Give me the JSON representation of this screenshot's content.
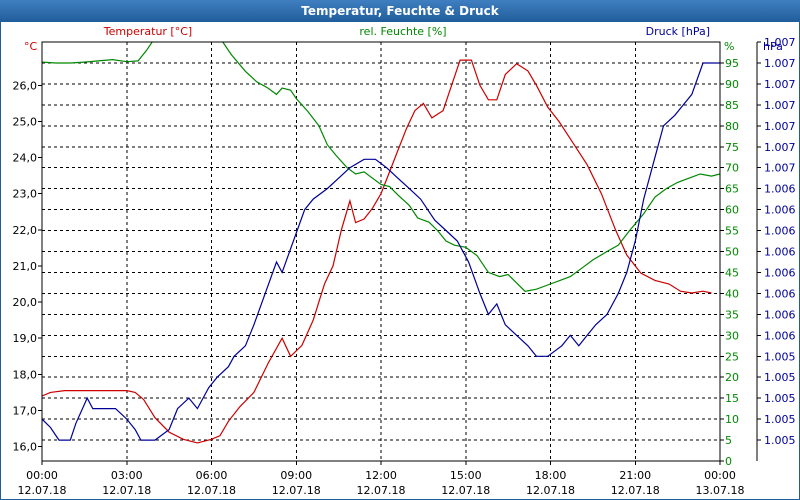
{
  "title": "Temperatur, Feuchte & Druck",
  "chart_data": {
    "type": "line",
    "title": "Temperatur, Feuchte & Druck",
    "colors": {
      "temperature": "#cc0000",
      "humidity": "#008800",
      "pressure": "#000099"
    },
    "x_ticks": [
      {
        "time": "00:00",
        "date": "12.07.18"
      },
      {
        "time": "03:00",
        "date": "12.07.18"
      },
      {
        "time": "06:00",
        "date": "12.07.18"
      },
      {
        "time": "09:00",
        "date": "12.07.18"
      },
      {
        "time": "12:00",
        "date": "12.07.18"
      },
      {
        "time": "15:00",
        "date": "12.07.18"
      },
      {
        "time": "18:00",
        "date": "12.07.18"
      },
      {
        "time": "21:00",
        "date": "12.07.18"
      },
      {
        "time": "00:00",
        "date": "13.07.18"
      }
    ],
    "x_range_hours": [
      0,
      24
    ],
    "axes": {
      "left": {
        "label": "Temperatur [°C]",
        "unit": "°C",
        "ylim": [
          15.6,
          27.2
        ],
        "ticks": [
          "16,0",
          "17,0",
          "18,0",
          "19,0",
          "20,0",
          "21,0",
          "22,0",
          "23,0",
          "24,0",
          "25,0",
          "26,0"
        ],
        "tick_values": [
          16,
          17,
          18,
          19,
          20,
          21,
          22,
          23,
          24,
          25,
          26
        ]
      },
      "right1": {
        "label": "rel. Feuchte [%]",
        "unit": "%",
        "ylim": [
          0,
          100
        ],
        "ticks": [
          "0",
          "5",
          "10",
          "15",
          "20",
          "25",
          "30",
          "35",
          "40",
          "45",
          "50",
          "55",
          "60",
          "65",
          "70",
          "75",
          "80",
          "85",
          "90",
          "95"
        ],
        "tick_values": [
          0,
          5,
          10,
          15,
          20,
          25,
          30,
          35,
          40,
          45,
          50,
          55,
          60,
          65,
          70,
          75,
          80,
          85,
          90,
          95
        ]
      },
      "right2": {
        "label": "Druck [hPa]",
        "unit": "hPa",
        "ylim": [
          0,
          100
        ],
        "ticks": [
          "1.005",
          "1.005",
          "1.005",
          "1.005",
          "1.005",
          "1.006",
          "1.006",
          "1.006",
          "1.006",
          "1.006",
          "1.006",
          "1.006",
          "1.006",
          "1.007",
          "1.007",
          "1.007",
          "1.007",
          "1.007",
          "1.007",
          "1.007"
        ],
        "tick_values": [
          5,
          10,
          15,
          20,
          25,
          30,
          35,
          40,
          45,
          50,
          55,
          60,
          65,
          70,
          75,
          80,
          85,
          90,
          95,
          100
        ]
      }
    },
    "grid": true,
    "series": [
      {
        "name": "Temperatur [°C]",
        "axis": "left",
        "points": [
          [
            0.0,
            17.4
          ],
          [
            0.3,
            17.5
          ],
          [
            0.8,
            17.55
          ],
          [
            1.5,
            17.55
          ],
          [
            2.3,
            17.55
          ],
          [
            3.0,
            17.55
          ],
          [
            3.3,
            17.5
          ],
          [
            3.6,
            17.3
          ],
          [
            4.0,
            16.8
          ],
          [
            4.5,
            16.4
          ],
          [
            5.0,
            16.2
          ],
          [
            5.5,
            16.1
          ],
          [
            6.0,
            16.2
          ],
          [
            6.3,
            16.3
          ],
          [
            6.6,
            16.7
          ],
          [
            7.0,
            17.1
          ],
          [
            7.5,
            17.5
          ],
          [
            8.0,
            18.3
          ],
          [
            8.5,
            19.0
          ],
          [
            8.8,
            18.5
          ],
          [
            9.2,
            18.8
          ],
          [
            9.6,
            19.5
          ],
          [
            10.0,
            20.5
          ],
          [
            10.3,
            21.0
          ],
          [
            10.6,
            22.0
          ],
          [
            10.9,
            22.8
          ],
          [
            11.1,
            22.2
          ],
          [
            11.4,
            22.3
          ],
          [
            11.7,
            22.6
          ],
          [
            12.0,
            23.0
          ],
          [
            12.3,
            23.6
          ],
          [
            12.6,
            24.2
          ],
          [
            12.9,
            24.8
          ],
          [
            13.2,
            25.3
          ],
          [
            13.5,
            25.5
          ],
          [
            13.8,
            25.1
          ],
          [
            14.2,
            25.3
          ],
          [
            14.5,
            26.0
          ],
          [
            14.8,
            26.7
          ],
          [
            15.2,
            26.7
          ],
          [
            15.5,
            26.0
          ],
          [
            15.8,
            25.6
          ],
          [
            16.1,
            25.6
          ],
          [
            16.4,
            26.3
          ],
          [
            16.8,
            26.6
          ],
          [
            17.2,
            26.4
          ],
          [
            17.5,
            26.0
          ],
          [
            17.9,
            25.4
          ],
          [
            18.3,
            25.0
          ],
          [
            18.8,
            24.4
          ],
          [
            19.3,
            23.8
          ],
          [
            19.8,
            23.0
          ],
          [
            20.3,
            22.0
          ],
          [
            20.7,
            21.3
          ],
          [
            21.2,
            20.8
          ],
          [
            21.7,
            20.6
          ],
          [
            22.2,
            20.5
          ],
          [
            22.6,
            20.3
          ],
          [
            23.0,
            20.25
          ],
          [
            23.4,
            20.3
          ],
          [
            23.7,
            20.25
          ]
        ]
      },
      {
        "name": "rel. Feuchte [%]",
        "axis": "right1",
        "points": [
          [
            0.0,
            95.2
          ],
          [
            0.5,
            95.0
          ],
          [
            1.0,
            95.0
          ],
          [
            1.5,
            95.2
          ],
          [
            2.0,
            95.5
          ],
          [
            2.5,
            95.8
          ],
          [
            3.0,
            95.3
          ],
          [
            3.4,
            95.5
          ],
          [
            3.7,
            98.0
          ],
          [
            4.0,
            101
          ],
          [
            6.0,
            101
          ],
          [
            6.4,
            100
          ],
          [
            6.7,
            97.0
          ],
          [
            7.2,
            93.0
          ],
          [
            7.6,
            90.5
          ],
          [
            8.0,
            89.0
          ],
          [
            8.3,
            87.5
          ],
          [
            8.5,
            89.0
          ],
          [
            8.8,
            88.5
          ],
          [
            9.0,
            86.5
          ],
          [
            9.4,
            83.5
          ],
          [
            9.8,
            80.0
          ],
          [
            10.1,
            75.5
          ],
          [
            10.4,
            73.0
          ],
          [
            10.8,
            70.0
          ],
          [
            11.1,
            68.5
          ],
          [
            11.4,
            69.0
          ],
          [
            11.7,
            67.5
          ],
          [
            12.0,
            66.0
          ],
          [
            12.3,
            65.5
          ],
          [
            12.6,
            63.5
          ],
          [
            13.0,
            61.0
          ],
          [
            13.3,
            58.0
          ],
          [
            13.7,
            57.0
          ],
          [
            14.0,
            55.0
          ],
          [
            14.3,
            52.5
          ],
          [
            14.6,
            51.5
          ],
          [
            15.0,
            51.0
          ],
          [
            15.4,
            49.0
          ],
          [
            15.8,
            45.0
          ],
          [
            16.2,
            44.0
          ],
          [
            16.5,
            44.5
          ],
          [
            16.8,
            42.5
          ],
          [
            17.1,
            40.5
          ],
          [
            17.5,
            41.0
          ],
          [
            17.9,
            42.0
          ],
          [
            18.3,
            43.0
          ],
          [
            18.7,
            44.0
          ],
          [
            19.1,
            46.0
          ],
          [
            19.5,
            48.0
          ],
          [
            20.0,
            50.0
          ],
          [
            20.4,
            51.5
          ],
          [
            20.8,
            55.0
          ],
          [
            21.3,
            59.0
          ],
          [
            21.7,
            63.0
          ],
          [
            22.1,
            65.0
          ],
          [
            22.5,
            66.5
          ],
          [
            22.9,
            67.5
          ],
          [
            23.3,
            68.5
          ],
          [
            23.7,
            68.0
          ],
          [
            24.0,
            68.5
          ]
        ]
      },
      {
        "name": "Druck [hPa]",
        "axis": "right2",
        "points": [
          [
            0.0,
            10.0
          ],
          [
            0.3,
            8.0
          ],
          [
            0.6,
            5.0
          ],
          [
            1.0,
            5.0
          ],
          [
            1.2,
            9.0
          ],
          [
            1.6,
            15.0
          ],
          [
            1.8,
            12.5
          ],
          [
            2.2,
            12.5
          ],
          [
            2.6,
            12.5
          ],
          [
            3.0,
            10.0
          ],
          [
            3.3,
            7.5
          ],
          [
            3.5,
            5.0
          ],
          [
            4.0,
            5.0
          ],
          [
            4.5,
            7.5
          ],
          [
            4.8,
            12.5
          ],
          [
            5.2,
            15.0
          ],
          [
            5.5,
            12.5
          ],
          [
            5.9,
            17.5
          ],
          [
            6.2,
            20.0
          ],
          [
            6.6,
            22.5
          ],
          [
            6.8,
            25.0
          ],
          [
            7.2,
            27.5
          ],
          [
            7.5,
            32.5
          ],
          [
            7.9,
            40.0
          ],
          [
            8.3,
            47.5
          ],
          [
            8.5,
            45.0
          ],
          [
            8.9,
            52.5
          ],
          [
            9.3,
            60.0
          ],
          [
            9.6,
            62.5
          ],
          [
            10.1,
            65.0
          ],
          [
            10.5,
            67.5
          ],
          [
            10.9,
            70.0
          ],
          [
            11.4,
            72.0
          ],
          [
            11.8,
            72.0
          ],
          [
            12.2,
            70.0
          ],
          [
            12.6,
            67.5
          ],
          [
            13.0,
            65.0
          ],
          [
            13.4,
            62.5
          ],
          [
            13.9,
            57.5
          ],
          [
            14.3,
            55.0
          ],
          [
            14.7,
            52.5
          ],
          [
            15.1,
            47.5
          ],
          [
            15.5,
            40.0
          ],
          [
            15.8,
            35.0
          ],
          [
            16.1,
            37.5
          ],
          [
            16.4,
            32.5
          ],
          [
            16.8,
            30.0
          ],
          [
            17.2,
            27.5
          ],
          [
            17.5,
            25.0
          ],
          [
            17.9,
            25.0
          ],
          [
            18.4,
            27.5
          ],
          [
            18.7,
            30.0
          ],
          [
            19.0,
            27.5
          ],
          [
            19.3,
            30.0
          ],
          [
            19.6,
            32.5
          ],
          [
            20.0,
            35.0
          ],
          [
            20.4,
            40.0
          ],
          [
            20.7,
            45.0
          ],
          [
            21.0,
            52.5
          ],
          [
            21.3,
            62.5
          ],
          [
            21.7,
            72.5
          ],
          [
            22.0,
            80.0
          ],
          [
            22.4,
            82.5
          ],
          [
            22.7,
            85.0
          ],
          [
            23.0,
            87.5
          ],
          [
            23.4,
            95.0
          ],
          [
            23.8,
            95.0
          ],
          [
            24.0,
            95.0
          ]
        ]
      }
    ]
  }
}
